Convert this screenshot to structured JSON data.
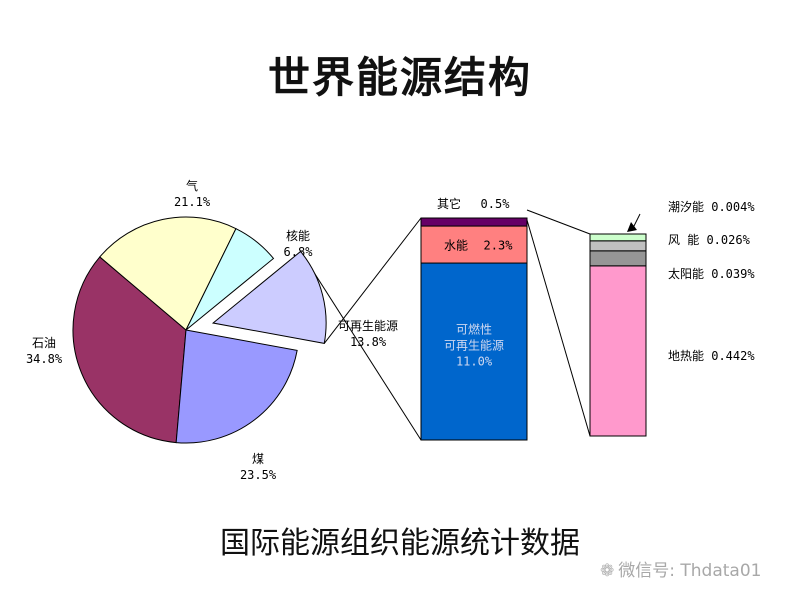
{
  "title": "世界能源结构",
  "subtitle": "国际能源组织能源统计数据",
  "watermark": {
    "icon": "wechat-icon",
    "text": "微信号: Thdata01"
  },
  "chart_data": [
    {
      "type": "pie",
      "title": "",
      "series": [
        {
          "label": "石油",
          "pct_label": "34.8%",
          "value": 34.8,
          "color": "#993366"
        },
        {
          "label": "气",
          "pct_label": "21.1%",
          "value": 21.1,
          "color": "#ffffcc"
        },
        {
          "label": "核能",
          "pct_label": "6.8%",
          "value": 6.8,
          "color": "#ccffff"
        },
        {
          "label": "可再生能源",
          "pct_label": "13.8%",
          "value": 13.8,
          "color": "#ccccff",
          "exploded": true
        },
        {
          "label": "煤",
          "pct_label": "23.5%",
          "value": 23.5,
          "color": "#9999ff"
        }
      ]
    },
    {
      "type": "bar",
      "stacked": true,
      "title": "",
      "series": [
        {
          "name": "可燃性\n可再生能源",
          "pct_label": "11.0%",
          "value": 11.0,
          "color": "#0066cc"
        },
        {
          "name": "水能",
          "pct_label": "2.3%",
          "value": 2.3,
          "color": "#ff8080"
        },
        {
          "name": "其它",
          "pct_label": "0.5%",
          "value": 0.5,
          "color": "#660066"
        }
      ]
    },
    {
      "type": "bar",
      "stacked": true,
      "title": "",
      "series": [
        {
          "name": "地热能",
          "pct_label": "0.442%",
          "value": 0.442,
          "color": "#ff99cc"
        },
        {
          "name": "太阳能",
          "pct_label": "0.039%",
          "value": 0.039,
          "color": "#969696"
        },
        {
          "name": "风 能",
          "pct_label": "0.026%",
          "value": 0.026,
          "color": "#c0c0c0"
        },
        {
          "name": "潮汐能",
          "pct_label": "0.004%",
          "value": 0.004,
          "color": "#ccffcc"
        }
      ]
    }
  ]
}
